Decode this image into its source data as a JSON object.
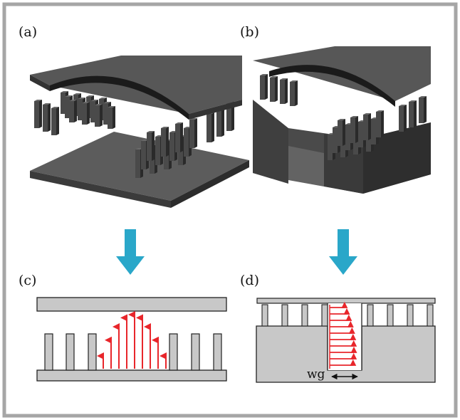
{
  "panels": {
    "a": {
      "label": "(a)"
    },
    "b": {
      "label": "(b)"
    },
    "c": {
      "label": "(c)"
    },
    "d": {
      "label": "(d)"
    }
  },
  "annotations": {
    "gap_label": "wg"
  },
  "colors": {
    "frame": "#a6a6a6",
    "metal_top": "#5b5b5b",
    "metal_side": "#3a3a3a",
    "metal_dark": "#1f1f1f",
    "arrow_down": "#2aa7c9",
    "section_fill": "#c8c8c8",
    "section_stroke": "#222222",
    "field_arrow": "#e8262b"
  }
}
